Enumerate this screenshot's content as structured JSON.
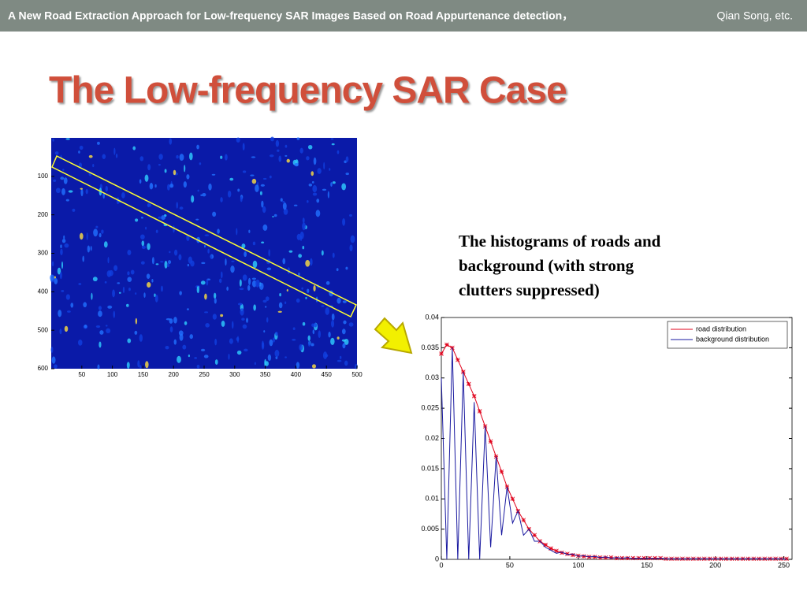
{
  "header": {
    "title": "A New Road Extraction Approach for Low-frequency SAR Images Based on Road Appurtenance detection，",
    "authors": "Qian Song, etc."
  },
  "slide_title": "The Low-frequency SAR Case",
  "caption": "The histograms of roads and background (with strong clutters suppressed)",
  "sar_image": {
    "xlim": [
      0,
      500
    ],
    "ylim": [
      0,
      600
    ],
    "xticks": [
      50,
      100,
      150,
      200,
      250,
      300,
      350,
      400,
      450,
      500
    ],
    "yticks": [
      100,
      200,
      300,
      400,
      500,
      600
    ]
  },
  "chart_data": {
    "type": "line",
    "x": [
      0,
      4,
      8,
      12,
      16,
      20,
      24,
      28,
      32,
      36,
      40,
      44,
      48,
      52,
      56,
      60,
      64,
      68,
      72,
      76,
      80,
      84,
      88,
      92,
      96,
      100,
      104,
      108,
      112,
      116,
      120,
      124,
      128,
      132,
      136,
      140,
      144,
      148,
      152,
      156,
      160,
      164,
      168,
      172,
      176,
      180,
      184,
      188,
      192,
      196,
      200,
      204,
      208,
      212,
      216,
      220,
      224,
      228,
      232,
      236,
      240,
      244,
      248,
      252
    ],
    "series": [
      {
        "name": "road distribution",
        "color": "#e0001a",
        "marker": "*",
        "values": [
          0.034,
          0.0355,
          0.035,
          0.033,
          0.031,
          0.029,
          0.027,
          0.0245,
          0.022,
          0.0195,
          0.017,
          0.0145,
          0.012,
          0.01,
          0.008,
          0.0065,
          0.005,
          0.004,
          0.003,
          0.0024,
          0.0018,
          0.0014,
          0.0011,
          0.0009,
          0.0007,
          0.0006,
          0.0005,
          0.0004,
          0.0004,
          0.0003,
          0.0003,
          0.0003,
          0.0002,
          0.0002,
          0.0002,
          0.0002,
          0.0002,
          0.0002,
          0.0002,
          0.0002,
          0.0002,
          0.0001,
          0.0001,
          0.0001,
          0.0001,
          0.0001,
          0.0001,
          0.0001,
          0.0001,
          0.0001,
          0.0001,
          0.0001,
          0.0001,
          0.0001,
          0.0001,
          0.0001,
          0.0001,
          0.0001,
          0.0001,
          0.0001,
          0.0001,
          0.0001,
          0.0001,
          0.0001
        ]
      },
      {
        "name": "background distribution",
        "color": "#1a1aa0",
        "values": [
          0.03,
          0,
          0.035,
          0,
          0.031,
          0,
          0.026,
          0,
          0.022,
          0.002,
          0.017,
          0.004,
          0.012,
          0.006,
          0.008,
          0.004,
          0.005,
          0.003,
          0.003,
          0.002,
          0.0015,
          0.001,
          0.0012,
          0.0008,
          0.0009,
          0.0005,
          0.0006,
          0.0004,
          0.0005,
          0.0003,
          0.0004,
          0.0002,
          0.0003,
          0.0002,
          0.0003,
          0.0001,
          0.0002,
          0.0001,
          0.0002,
          0.0001,
          0.0002,
          0.0001,
          0.0001,
          0.0001,
          0.0001,
          0.0001,
          0.0001,
          0.0001,
          0.0001,
          0.0001,
          0.0001,
          0.0001,
          0.0001,
          0.0001,
          0.0001,
          0.0001,
          0.0001,
          0.0001,
          0.0001,
          0.0001,
          0.0001,
          0.0001,
          0.0001,
          0
        ]
      }
    ],
    "xlim": [
      0,
      256
    ],
    "ylim": [
      0,
      0.04
    ],
    "xticks": [
      0,
      50,
      100,
      150,
      200,
      250
    ],
    "yticks": [
      0,
      0.005,
      0.01,
      0.015,
      0.02,
      0.025,
      0.03,
      0.035,
      0.04
    ],
    "legend": "upper right"
  }
}
